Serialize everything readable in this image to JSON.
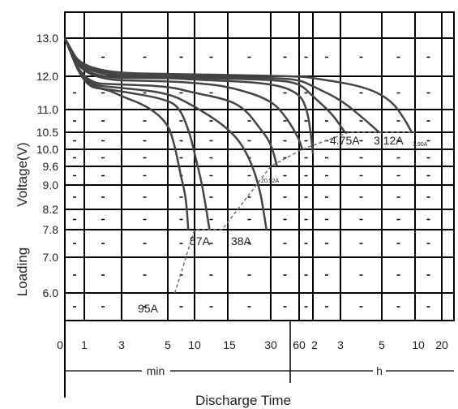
{
  "chart_data": {
    "type": "line",
    "title": "",
    "xlabel": "Discharge Time",
    "ylabel": "Loading Voltage(V)",
    "ylabel_parts": [
      "Loading",
      "Voltage(V)"
    ],
    "y_ticks": [
      "13.0",
      "12.0",
      "11.0",
      "10.5",
      "10.0",
      "9.6",
      "9.0",
      "8.2",
      "7.8",
      "7.0",
      "6.0"
    ],
    "y_tick_values": [
      13.0,
      12.0,
      11.0,
      10.5,
      10.0,
      9.6,
      9.0,
      8.2,
      7.8,
      7.0,
      6.0
    ],
    "x_ticks": [
      "0",
      "1",
      "3",
      "5",
      "10",
      "15",
      "30",
      "60",
      "2",
      "3",
      "5",
      "10",
      "20"
    ],
    "x_groups": [
      {
        "label": "min",
        "ticks": [
          "1",
          "3",
          "5",
          "10",
          "15",
          "30",
          "60"
        ]
      },
      {
        "label": "h",
        "ticks": [
          "2",
          "3",
          "5",
          "10",
          "20"
        ]
      }
    ],
    "series": [
      {
        "name": "95A",
        "x_minutes": [
          0,
          1,
          2,
          3,
          4,
          5,
          6,
          7,
          8,
          8.5
        ],
        "y": [
          13.0,
          11.7,
          11.6,
          11.4,
          11.1,
          10.7,
          10.1,
          9.3,
          8.6,
          7.8
        ]
      },
      {
        "name": "57A",
        "x_minutes": [
          0,
          1,
          3,
          5,
          7,
          9,
          10,
          11,
          12
        ],
        "y": [
          13.0,
          11.7,
          11.55,
          11.3,
          11.0,
          10.4,
          9.9,
          9.0,
          7.8
        ]
      },
      {
        "name": "38A",
        "x_minutes": [
          0,
          1,
          3,
          5,
          10,
          15,
          20,
          25,
          28
        ],
        "y": [
          13.0,
          11.75,
          11.65,
          11.5,
          11.1,
          10.6,
          10.0,
          9.0,
          7.8
        ]
      },
      {
        "name": "20.52A",
        "x_minutes": [
          0,
          1,
          3,
          5,
          10,
          15,
          20,
          25,
          30,
          35
        ],
        "y": [
          13.0,
          11.8,
          11.75,
          11.7,
          11.5,
          11.3,
          11.0,
          10.6,
          10.2,
          9.6
        ]
      },
      {
        "name": "",
        "x_minutes": [
          0,
          1,
          5,
          10,
          15,
          30,
          45,
          60,
          70
        ],
        "y": [
          13.0,
          11.9,
          11.85,
          11.8,
          11.7,
          11.3,
          10.8,
          10.3,
          10.0
        ]
      },
      {
        "name": "",
        "x_minutes": [
          0,
          1,
          5,
          10,
          30,
          60,
          90,
          110,
          120
        ],
        "y": [
          13.0,
          11.95,
          11.95,
          11.9,
          11.8,
          11.5,
          11.0,
          10.4,
          9.9
        ]
      },
      {
        "name": "4.75A",
        "x_minutes": [
          0,
          1,
          10,
          30,
          60,
          120,
          160,
          190
        ],
        "y": [
          13.0,
          12.0,
          11.95,
          11.9,
          11.8,
          11.4,
          10.9,
          10.5
        ]
      },
      {
        "name": "3.12A",
        "x_minutes": [
          0,
          1,
          10,
          30,
          60,
          120,
          180,
          240,
          290
        ],
        "y": [
          13.0,
          12.05,
          12.0,
          11.95,
          11.9,
          11.7,
          11.3,
          10.8,
          10.5
        ]
      },
      {
        "name": "1.90A",
        "x_minutes": [
          0,
          1,
          10,
          60,
          120,
          240,
          360,
          480,
          560
        ],
        "y": [
          13.0,
          12.1,
          12.05,
          12.0,
          11.95,
          11.7,
          11.3,
          10.8,
          10.5
        ]
      }
    ],
    "end_voltage_line": {
      "x_minutes": [
        6,
        10,
        14,
        30,
        70,
        200,
        600
      ],
      "y": [
        6.0,
        7.8,
        7.8,
        9.6,
        10.0,
        10.5,
        10.5
      ]
    },
    "grid": true,
    "legend": "none"
  }
}
